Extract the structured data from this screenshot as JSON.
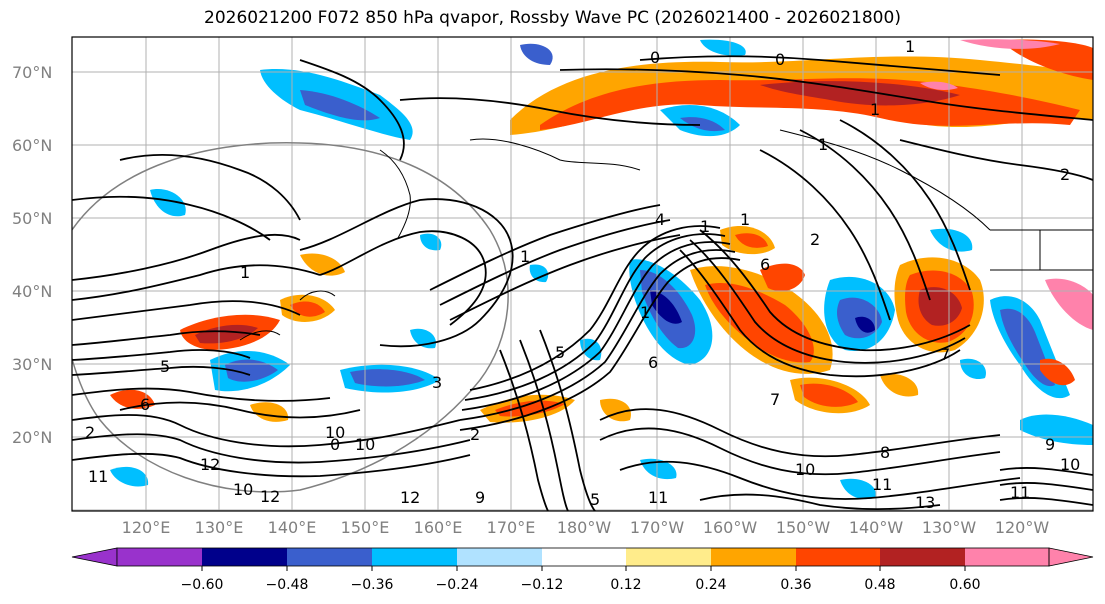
{
  "title": "2026021200 F072 850 hPa qvapor, Rossby Wave PC (2026021400 - 2026021800)",
  "lat_labels": [
    "70°N",
    "60°N",
    "50°N",
    "40°N",
    "30°N",
    "20°N"
  ],
  "lon_labels": [
    "120°E",
    "130°E",
    "140°E",
    "150°E",
    "160°E",
    "170°E",
    "180°W",
    "170°W",
    "160°W",
    "150°W",
    "140°W",
    "130°W",
    "120°W"
  ],
  "colorbar": {
    "colors": [
      "#9932cc",
      "#00008b",
      "#3a5fcd",
      "#00bfff",
      "#b0e2ff",
      "#ffffff",
      "#ffec8b",
      "#ffa500",
      "#ff4500",
      "#b22222",
      "#ff82ab"
    ],
    "tick_labels": [
      "−0.60",
      "−0.48",
      "−0.36",
      "−0.24",
      "−0.12",
      "0.12",
      "0.24",
      "0.36",
      "0.48",
      "0.60"
    ]
  },
  "contour_labels": [
    "0",
    "0",
    "1",
    "1",
    "2",
    "1",
    "1",
    "2",
    "6",
    "4",
    "1",
    "5",
    "3",
    "0",
    "1",
    "2",
    "1",
    "1",
    "5",
    "6",
    "7",
    "6",
    "7",
    "5",
    "10",
    "12",
    "10",
    "11",
    "10",
    "8",
    "11",
    "13",
    "12",
    "12",
    "11",
    "9",
    "10",
    "11",
    "10",
    "9",
    "2"
  ]
}
